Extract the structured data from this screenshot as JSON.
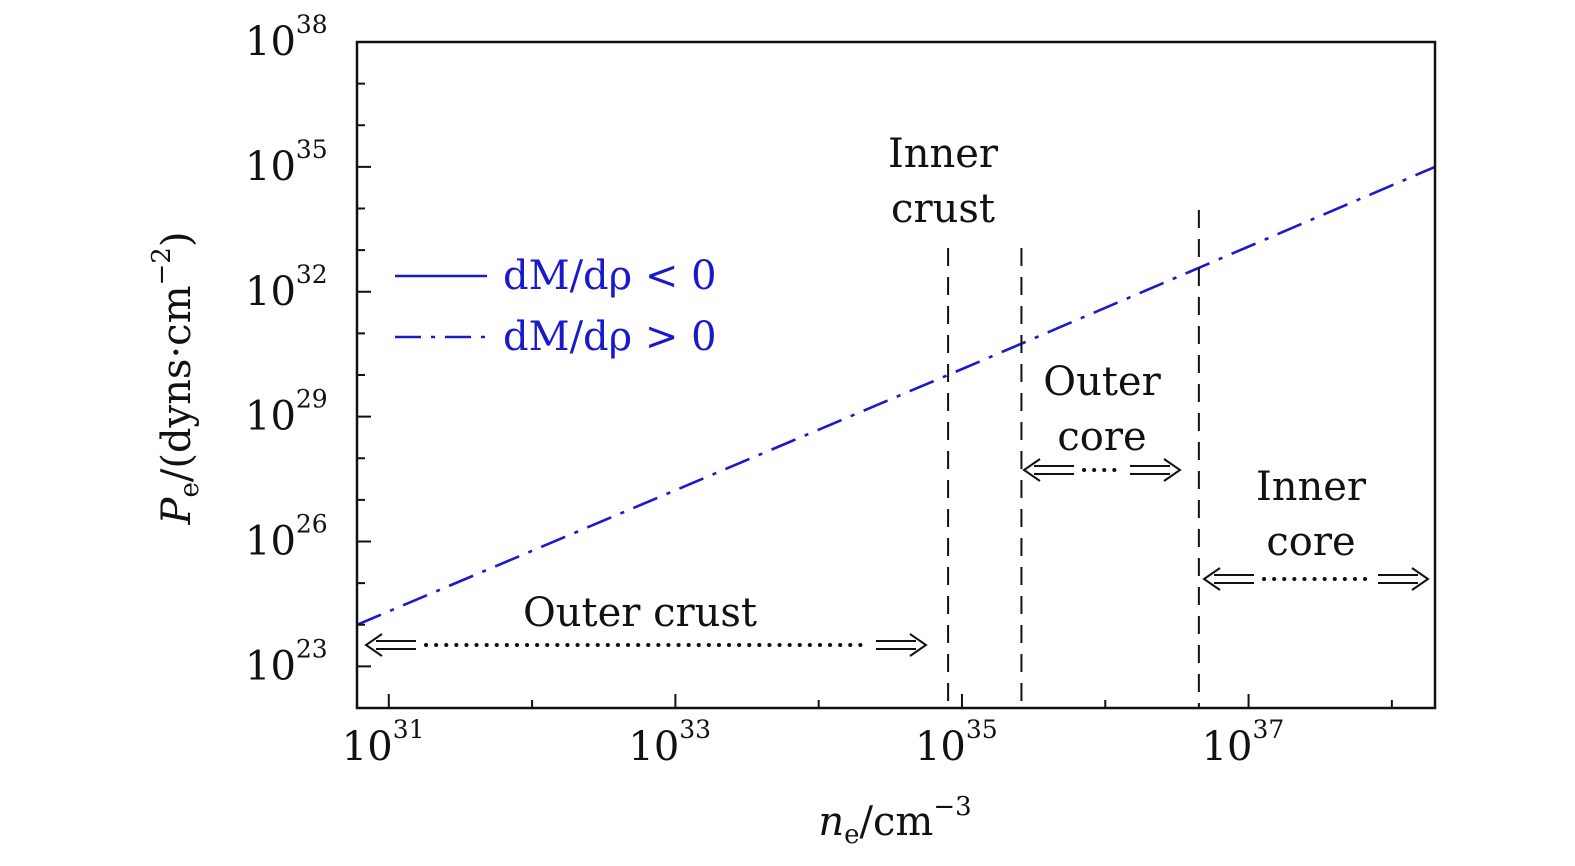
{
  "chart_data": {
    "type": "line",
    "xscale": "log",
    "yscale": "log",
    "xlim": [
      6e+30,
      2e+38
    ],
    "ylim": [
      1e+22,
      1e+38
    ],
    "xticks": [
      {
        "value": 1e+31,
        "base": "10",
        "exp": "31"
      },
      {
        "value": 1e+33,
        "base": "10",
        "exp": "33"
      },
      {
        "value": 1e+35,
        "base": "10",
        "exp": "35"
      },
      {
        "value": 1e+37,
        "base": "10",
        "exp": "37"
      }
    ],
    "yticks": [
      {
        "value": 1e+23,
        "base": "10",
        "exp": "23"
      },
      {
        "value": 1e+26,
        "base": "10",
        "exp": "26"
      },
      {
        "value": 1e+29,
        "base": "10",
        "exp": "29"
      },
      {
        "value": 1e+32,
        "base": "10",
        "exp": "32"
      },
      {
        "value": 1e+35,
        "base": "10",
        "exp": "35"
      },
      {
        "value": 1e+38,
        "base": "10",
        "exp": "38"
      }
    ],
    "xlabel": {
      "var": "n",
      "sub": "e",
      "unit": "/cm",
      "exp": "−3"
    },
    "ylabel": {
      "var": "P",
      "sub": "e",
      "unit": "/(dyns·cm",
      "exp": "−2",
      "close": ")"
    },
    "series": [
      {
        "name": "dM/dρ < 0",
        "style": "solid",
        "color": "#1a1acc",
        "x": [],
        "y": []
      },
      {
        "name": "dM/dρ > 0",
        "style": "dashdot",
        "color": "#1a1acc",
        "x": [
          6e+30,
          8e+34,
          2e+38
        ],
        "y": [
          1e+24,
          1e+30,
          1e+35
        ]
      }
    ],
    "boundaries": [
      8e+34,
      2.6e+35,
      4.5e+36
    ],
    "regions": [
      {
        "lines": [
          "Outer crust"
        ]
      },
      {
        "lines": [
          "Inner",
          "crust"
        ]
      },
      {
        "lines": [
          "Outer",
          "core"
        ]
      },
      {
        "lines": [
          "Inner",
          "core"
        ]
      }
    ],
    "legend": {
      "position": "upper-left"
    },
    "grid": false
  }
}
